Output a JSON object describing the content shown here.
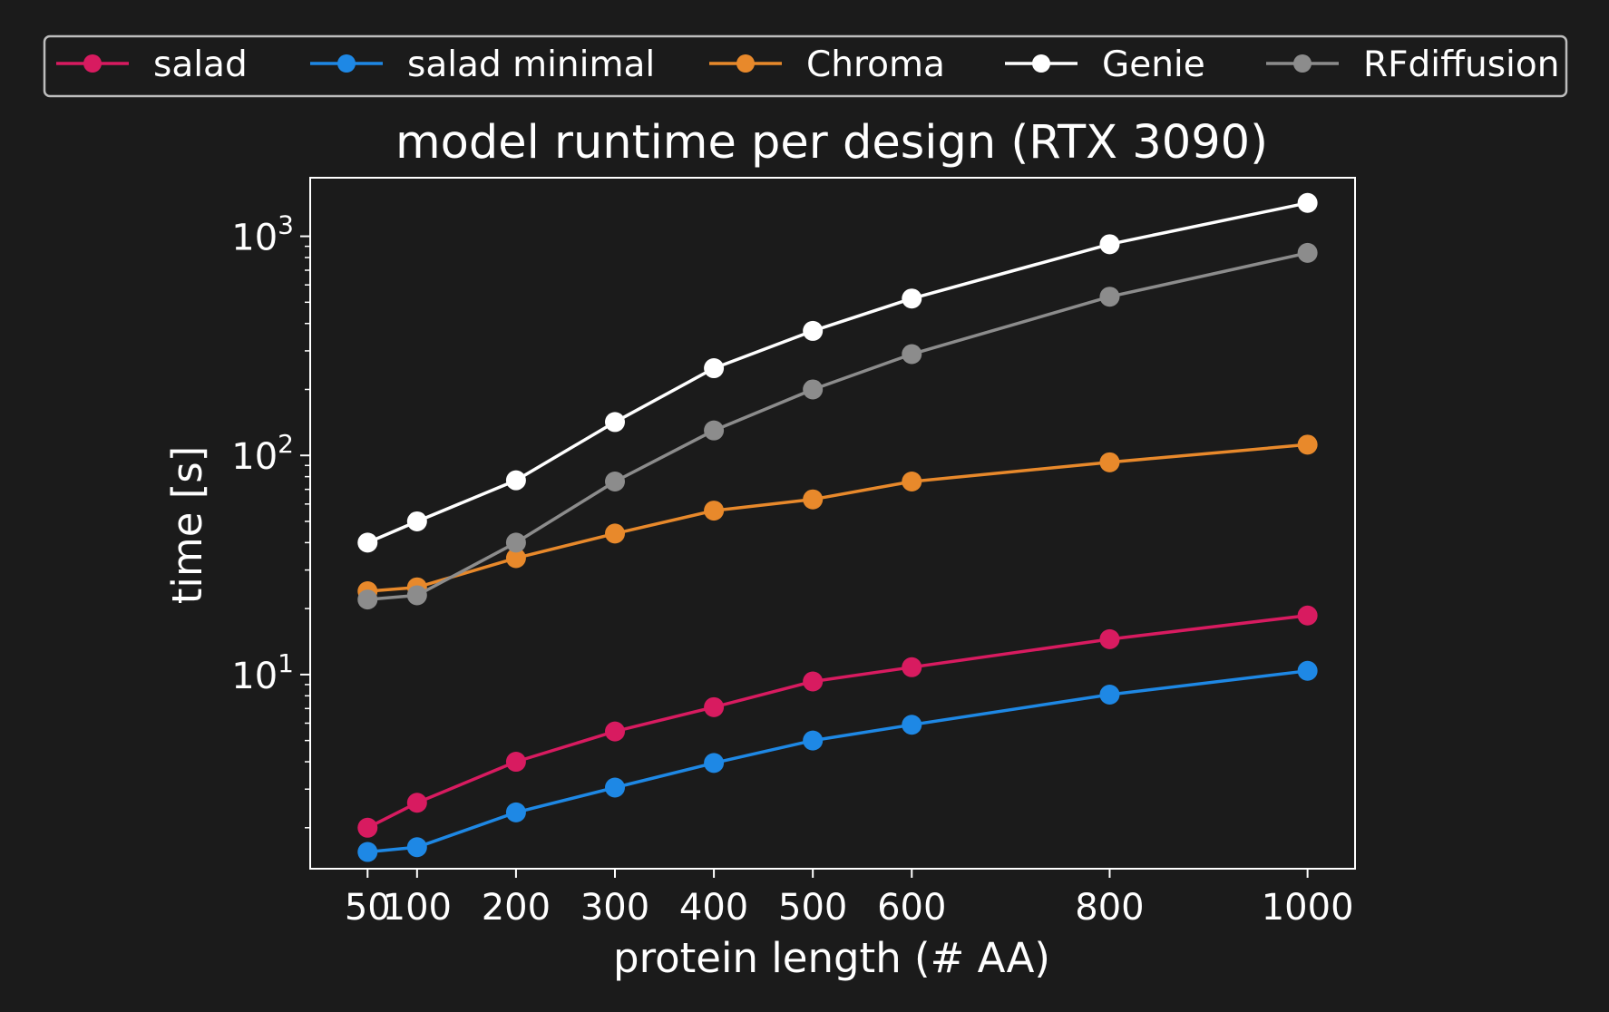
{
  "chart_data": {
    "type": "line",
    "title": "model runtime per design (RTX 3090)",
    "xlabel": "protein length (# AA)",
    "ylabel": "time [s]",
    "x_scale": "linear",
    "y_scale": "log",
    "xlim": [
      -8,
      1048
    ],
    "ylim": [
      1.3,
      1850
    ],
    "x": [
      50,
      100,
      200,
      300,
      400,
      500,
      600,
      800,
      1000
    ],
    "x_ticks": [
      50,
      100,
      200,
      300,
      400,
      500,
      600,
      800,
      1000
    ],
    "x_tick_labels": [
      "50",
      "100",
      "200",
      "300",
      "400",
      "500",
      "600",
      "800",
      "1000"
    ],
    "y_ticks": [
      {
        "value": 1000,
        "base": "10",
        "exp": "3"
      },
      {
        "value": 100,
        "base": "10",
        "exp": "2"
      },
      {
        "value": 10,
        "base": "10",
        "exp": "1"
      }
    ],
    "grid": false,
    "legend_position": "top, outside plot, single row",
    "series": [
      {
        "name": "salad",
        "color": "#d81b60",
        "values": [
          2.0,
          2.6,
          4.0,
          5.5,
          7.1,
          9.3,
          10.8,
          14.5,
          18.6
        ]
      },
      {
        "name": "salad minimal",
        "color": "#1e88e5",
        "values": [
          1.55,
          1.63,
          2.35,
          3.05,
          3.95,
          5.0,
          5.9,
          8.1,
          10.4
        ]
      },
      {
        "name": "Chroma",
        "color": "#e8892b",
        "values": [
          24,
          25,
          34,
          44,
          56,
          63,
          76,
          93,
          112
        ]
      },
      {
        "name": "Genie",
        "color": "#ffffff",
        "values": [
          40,
          50,
          77,
          142,
          250,
          370,
          520,
          920,
          1420
        ]
      },
      {
        "name": "RFdiffusion",
        "color": "#8c8c8c",
        "values": [
          22,
          23,
          40,
          76,
          130,
          200,
          290,
          530,
          840
        ]
      }
    ]
  }
}
